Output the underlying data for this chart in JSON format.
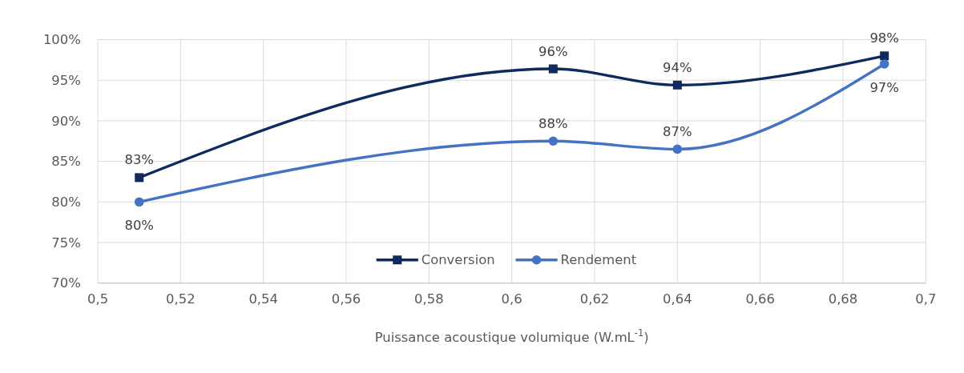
{
  "chart_data": {
    "type": "line",
    "xlabel": "Puissance acoustique volumique (W.mL$^{-1}$)",
    "x": [
      0.51,
      0.61,
      0.64,
      0.69
    ],
    "series": [
      {
        "name": "Conversion",
        "color": "#0e2a5f",
        "marker": "square",
        "values": [
          83,
          96.4,
          94.4,
          98
        ],
        "value_labels": [
          "83%",
          "96%",
          "94%",
          "98%"
        ]
      },
      {
        "name": "Rendement",
        "color": "#4472c4",
        "marker": "circle",
        "values": [
          80,
          87.5,
          86.5,
          97
        ],
        "value_labels": [
          "80%",
          "88%",
          "87%",
          "97%"
        ]
      }
    ],
    "xlim": [
      0.5,
      0.7
    ],
    "xticks": [
      {
        "value": 0.5,
        "label": "0,5"
      },
      {
        "value": 0.52,
        "label": "0,52"
      },
      {
        "value": 0.54,
        "label": "0,54"
      },
      {
        "value": 0.56,
        "label": "0,56"
      },
      {
        "value": 0.58,
        "label": "0,58"
      },
      {
        "value": 0.6,
        "label": "0,6"
      },
      {
        "value": 0.62,
        "label": "0,62"
      },
      {
        "value": 0.64,
        "label": "0,64"
      },
      {
        "value": 0.66,
        "label": "0,66"
      },
      {
        "value": 0.68,
        "label": "0,68"
      },
      {
        "value": 0.7,
        "label": "0,7"
      }
    ],
    "ylim": [
      70,
      100
    ],
    "yticks": [
      {
        "value": 70,
        "label": "70%"
      },
      {
        "value": 75,
        "label": "75%"
      },
      {
        "value": 80,
        "label": "80%"
      },
      {
        "value": 85,
        "label": "85%"
      },
      {
        "value": 90,
        "label": "90%"
      },
      {
        "value": 95,
        "label": "95%"
      },
      {
        "value": 100,
        "label": "100%"
      }
    ],
    "grid": true,
    "legend": "bottom",
    "line_style": "solid"
  }
}
